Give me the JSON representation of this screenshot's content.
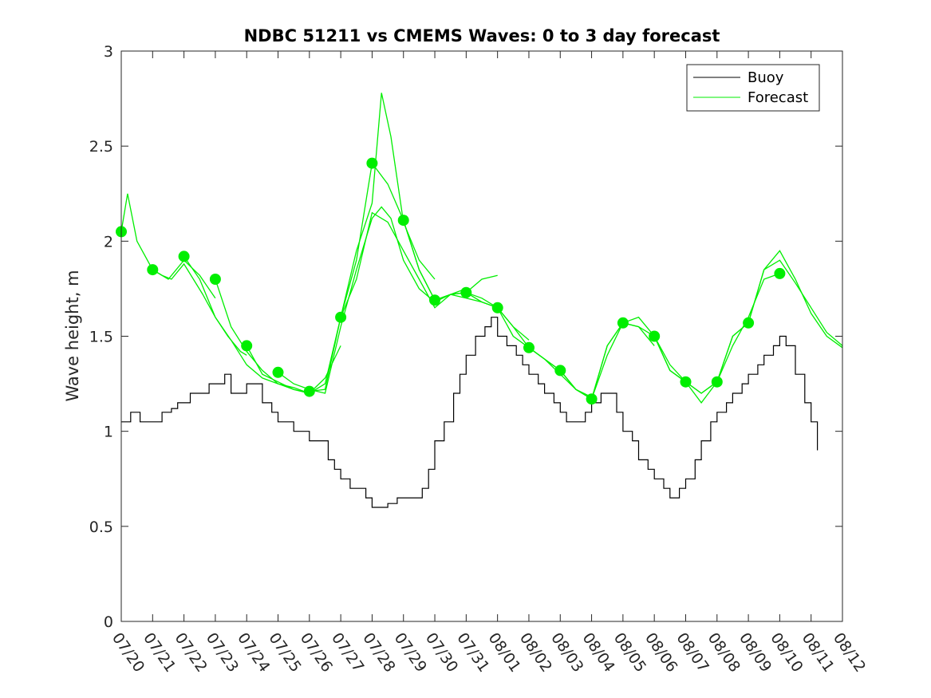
{
  "chart_data": {
    "type": "line",
    "title": "NDBC 51211 vs CMEMS Waves: 0 to 3 day forecast",
    "xlabel": "",
    "ylabel": "Wave height, m",
    "xlim": [
      "07/20",
      "08/12"
    ],
    "ylim": [
      0,
      3
    ],
    "x_tick_labels": [
      "07/20",
      "07/21",
      "07/22",
      "07/23",
      "07/24",
      "07/25",
      "07/26",
      "07/27",
      "07/28",
      "07/29",
      "07/30",
      "07/31",
      "08/01",
      "08/02",
      "08/03",
      "08/04",
      "08/05",
      "08/06",
      "08/07",
      "08/08",
      "08/09",
      "08/10",
      "08/11",
      "08/12"
    ],
    "y_ticks": [
      0,
      0.5,
      1,
      1.5,
      2,
      2.5,
      3
    ],
    "y_tick_labels": [
      "0",
      "0.5",
      "1",
      "1.5",
      "2",
      "2.5",
      "3"
    ],
    "grid": false,
    "legend": {
      "placement": "top-right",
      "entries": [
        "Buoy",
        "Forecast"
      ]
    },
    "colors": {
      "buoy": "#000000",
      "forecast": "#00ee00",
      "axis": "#262626"
    },
    "series": [
      {
        "name": "Buoy",
        "x_days_since_0720": [
          0,
          0.3,
          0.6,
          1,
          1.3,
          1.6,
          1.8,
          2,
          2.2,
          2.5,
          2.8,
          3,
          3.3,
          3.5,
          3.8,
          4,
          4.2,
          4.5,
          4.8,
          5,
          5.2,
          5.5,
          5.8,
          6,
          6.3,
          6.6,
          6.8,
          7,
          7.3,
          7.5,
          7.8,
          8,
          8.3,
          8.5,
          8.8,
          9,
          9.3,
          9.6,
          9.8,
          10,
          10.3,
          10.6,
          10.8,
          11,
          11.3,
          11.6,
          11.8,
          12,
          12.3,
          12.6,
          12.8,
          13,
          13.3,
          13.5,
          13.8,
          14,
          14.2,
          14.5,
          14.8,
          15,
          15.3,
          15.6,
          15.8,
          16,
          16.3,
          16.5,
          16.8,
          17,
          17.3,
          17.5,
          17.8,
          18,
          18.3,
          18.5,
          18.8,
          19,
          19.3,
          19.5,
          19.8,
          20,
          20.3,
          20.5,
          20.8,
          21,
          21.2,
          21.5,
          21.8,
          22,
          22.2
        ],
        "values": [
          1.05,
          1.1,
          1.05,
          1.05,
          1.1,
          1.12,
          1.15,
          1.15,
          1.2,
          1.2,
          1.25,
          1.25,
          1.3,
          1.2,
          1.2,
          1.25,
          1.25,
          1.15,
          1.1,
          1.05,
          1.05,
          1.0,
          1.0,
          0.95,
          0.95,
          0.85,
          0.8,
          0.75,
          0.7,
          0.7,
          0.65,
          0.6,
          0.6,
          0.62,
          0.65,
          0.65,
          0.65,
          0.7,
          0.8,
          0.95,
          1.05,
          1.2,
          1.3,
          1.4,
          1.5,
          1.55,
          1.6,
          1.5,
          1.45,
          1.4,
          1.35,
          1.3,
          1.25,
          1.2,
          1.15,
          1.1,
          1.05,
          1.05,
          1.1,
          1.15,
          1.2,
          1.2,
          1.1,
          1.0,
          0.95,
          0.85,
          0.8,
          0.75,
          0.7,
          0.65,
          0.7,
          0.75,
          0.85,
          0.95,
          1.05,
          1.1,
          1.15,
          1.2,
          1.25,
          1.3,
          1.35,
          1.4,
          1.45,
          1.5,
          1.45,
          1.3,
          1.15,
          1.05,
          0.9
        ]
      },
      {
        "name": "Forecast",
        "runs": [
          {
            "x": [
              0,
              0.2,
              0.5,
              1,
              1.5,
              2,
              2.5,
              3
            ],
            "y": [
              2.05,
              2.25,
              2.0,
              1.85,
              1.8,
              1.9,
              1.82,
              1.7
            ]
          },
          {
            "x": [
              1,
              1.3,
              1.6,
              2,
              2.3,
              2.6,
              3,
              3.4,
              3.8,
              4
            ],
            "y": [
              1.85,
              1.82,
              1.8,
              1.88,
              1.8,
              1.72,
              1.6,
              1.5,
              1.42,
              1.4
            ]
          },
          {
            "x": [
              2,
              2.5,
              3,
              3.5,
              4,
              4.5,
              5,
              5.5,
              6
            ],
            "y": [
              1.92,
              1.8,
              1.6,
              1.48,
              1.35,
              1.28,
              1.25,
              1.23,
              1.2
            ]
          },
          {
            "x": [
              3,
              3.5,
              4,
              4.5,
              5,
              5.5,
              6,
              6.5,
              7
            ],
            "y": [
              1.8,
              1.55,
              1.42,
              1.32,
              1.25,
              1.22,
              1.2,
              1.28,
              1.45
            ]
          },
          {
            "x": [
              4,
              4.5,
              5,
              5.5,
              6,
              6.5,
              7,
              7.5,
              8,
              8.3,
              8.6,
              9,
              9.5,
              10
            ],
            "y": [
              1.45,
              1.3,
              1.26,
              1.22,
              1.2,
              1.25,
              1.6,
              1.95,
              2.2,
              2.78,
              2.55,
              2.1,
              1.9,
              1.8
            ]
          },
          {
            "x": [
              5,
              5.5,
              6,
              6.5,
              7,
              7.5,
              8,
              8.3,
              8.6,
              9,
              9.5,
              10,
              10.5,
              11
            ],
            "y": [
              1.31,
              1.25,
              1.22,
              1.2,
              1.55,
              1.85,
              2.12,
              2.18,
              2.12,
              1.9,
              1.75,
              1.68,
              1.72,
              1.75
            ]
          },
          {
            "x": [
              6,
              6.5,
              7,
              7.5,
              8,
              8.5,
              9,
              9.5,
              10,
              10.5,
              11,
              11.5,
              12
            ],
            "y": [
              1.21,
              1.22,
              1.6,
              1.9,
              2.41,
              2.3,
              2.11,
              1.85,
              1.69,
              1.72,
              1.73,
              1.8,
              1.82
            ]
          },
          {
            "x": [
              7,
              7.5,
              8,
              8.5,
              9,
              9.5,
              10,
              10.5,
              11,
              11.5,
              12,
              12.5,
              13
            ],
            "y": [
              1.6,
              1.8,
              2.15,
              2.1,
              1.95,
              1.8,
              1.65,
              1.72,
              1.7,
              1.68,
              1.65,
              1.55,
              1.48
            ]
          },
          {
            "x": [
              9,
              9.5,
              10,
              10.5,
              11,
              11.5,
              12,
              12.5,
              13,
              13.5,
              14,
              14.5,
              15
            ],
            "y": [
              2.11,
              1.85,
              1.69,
              1.72,
              1.73,
              1.68,
              1.65,
              1.55,
              1.44,
              1.38,
              1.3,
              1.22,
              1.18
            ]
          },
          {
            "x": [
              11,
              11.5,
              12,
              12.5,
              13,
              13.5,
              14,
              14.5,
              15,
              15.5,
              16,
              16.5,
              17
            ],
            "y": [
              1.73,
              1.7,
              1.65,
              1.5,
              1.44,
              1.38,
              1.32,
              1.22,
              1.17,
              1.4,
              1.57,
              1.55,
              1.45
            ]
          },
          {
            "x": [
              13,
              13.5,
              14,
              14.5,
              15,
              15.5,
              16,
              16.5,
              17,
              17.5,
              18,
              18.5,
              19
            ],
            "y": [
              1.44,
              1.38,
              1.32,
              1.22,
              1.17,
              1.45,
              1.57,
              1.55,
              1.5,
              1.35,
              1.26,
              1.2,
              1.26
            ]
          },
          {
            "x": [
              15,
              15.5,
              16,
              16.5,
              17,
              17.5,
              18,
              18.5,
              19,
              19.5,
              20,
              20.5,
              21
            ],
            "y": [
              1.17,
              1.45,
              1.57,
              1.6,
              1.5,
              1.32,
              1.26,
              1.2,
              1.26,
              1.45,
              1.6,
              1.8,
              1.83
            ]
          },
          {
            "x": [
              17,
              17.5,
              18,
              18.5,
              19,
              19.5,
              20,
              20.5,
              21,
              21.5,
              22,
              22.5,
              23
            ],
            "y": [
              1.5,
              1.32,
              1.26,
              1.15,
              1.26,
              1.5,
              1.57,
              1.85,
              1.9,
              1.78,
              1.65,
              1.52,
              1.45
            ]
          },
          {
            "x": [
              19,
              19.5,
              20,
              20.5,
              21,
              21.5,
              22,
              22.5,
              23
            ],
            "y": [
              1.26,
              1.5,
              1.57,
              1.85,
              1.95,
              1.8,
              1.62,
              1.5,
              1.44
            ]
          }
        ],
        "markers": {
          "x": [
            0,
            1,
            2,
            3,
            4,
            5,
            6,
            7,
            8,
            9,
            10,
            11,
            12,
            13,
            14,
            15,
            16,
            17,
            18,
            19,
            20,
            21
          ],
          "y": [
            2.05,
            1.85,
            1.92,
            1.8,
            1.45,
            1.31,
            1.21,
            1.6,
            2.41,
            2.11,
            1.69,
            1.73,
            1.65,
            1.44,
            1.32,
            1.17,
            1.57,
            1.5,
            1.26,
            1.26,
            1.57,
            1.83
          ]
        }
      }
    ]
  }
}
